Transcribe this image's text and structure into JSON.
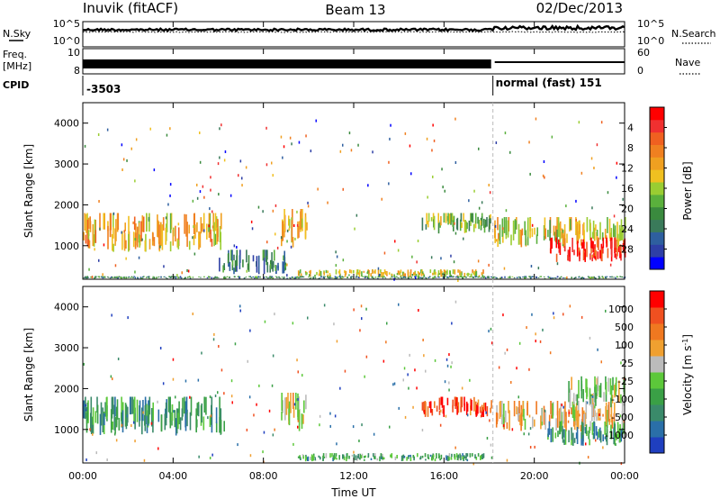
{
  "header": {
    "station": "Inuvik (fitACF)",
    "beam": "Beam 13",
    "date": "02/Dec/2013"
  },
  "noise_panel": {
    "left_label": "N.Sky",
    "left_ticks": [
      "10^5",
      "10^0"
    ],
    "right_ticks": [
      "10^5",
      "10^0"
    ],
    "right_label": "N.Search",
    "right_legend_style": "dotted"
  },
  "freq_panel": {
    "left_label_line1": "Freq.",
    "left_label_line2": "[MHz]",
    "left_ticks": [
      "10",
      "8"
    ],
    "right_ticks": [
      "60",
      "0"
    ],
    "right_label": "Nave",
    "right_legend_style": "dotted"
  },
  "cpid_panel": {
    "label": "CPID",
    "segments": [
      {
        "start_time": "00:00",
        "text": "-3503"
      },
      {
        "start_time": "18:10",
        "text": "normal (fast) 151"
      }
    ]
  },
  "time_axis": {
    "label": "Time UT",
    "ticks": [
      "00:00",
      "04:00",
      "08:00",
      "12:00",
      "16:00",
      "20:00",
      "00:00"
    ],
    "range_hours": [
      0,
      24
    ]
  },
  "mode_change_time": "18:10",
  "colors": {
    "background": "#ffffff",
    "axis": "#000000",
    "trace": "#000000",
    "mode_change_line": "#bbbbbb"
  },
  "chart_data": [
    {
      "type": "heatmap",
      "name": "power",
      "ylabel": "Slant Range [km]",
      "ylim": [
        180,
        4500
      ],
      "yticks": [
        "1000",
        "2000",
        "3000",
        "4000"
      ],
      "colorbar": {
        "label": "Power [dB]",
        "range": [
          0,
          32
        ],
        "ticks": [
          "4",
          "8",
          "12",
          "16",
          "20",
          "24",
          "28"
        ],
        "colors": [
          "#0000ff",
          "#2e3fa6",
          "#2e5f9f",
          "#3a7a5a",
          "#3a8a3e",
          "#5ab03c",
          "#9acd32",
          "#f0c020",
          "#f0a020",
          "#f08020",
          "#f06020",
          "#f03030",
          "#ff0000"
        ]
      },
      "echo_bands": [
        {
          "t0": 0.0,
          "t1": 6.3,
          "r0": 850,
          "r1": 1800,
          "level": 0.62
        },
        {
          "t0": 8.7,
          "t1": 9.9,
          "r0": 950,
          "r1": 1900,
          "level": 0.6
        },
        {
          "t0": 9.5,
          "t1": 17.8,
          "r0": 220,
          "r1": 420,
          "level": 0.55
        },
        {
          "t0": 15.0,
          "t1": 18.1,
          "r0": 1300,
          "r1": 1800,
          "level": 0.45
        },
        {
          "t0": 18.2,
          "t1": 24.0,
          "r0": 950,
          "r1": 1700,
          "level": 0.55
        },
        {
          "t0": 20.5,
          "t1": 24.0,
          "r0": 600,
          "r1": 1200,
          "level": 0.92
        },
        {
          "t0": 0.0,
          "t1": 24.0,
          "r0": 190,
          "r1": 260,
          "level": 0.3
        },
        {
          "t0": 6.0,
          "t1": 9.0,
          "r0": 300,
          "r1": 900,
          "level": 0.25
        }
      ]
    },
    {
      "type": "heatmap",
      "name": "velocity",
      "ylabel": "Slant Range [km]",
      "ylim": [
        180,
        4500
      ],
      "yticks": [
        "1000",
        "2000",
        "3000",
        "4000"
      ],
      "colorbar": {
        "label": "Velocity [m s^-1]",
        "ticks": [
          "1000",
          "500",
          "100",
          "25",
          "-25",
          "-100",
          "-500",
          "-1000"
        ],
        "colors": [
          "#1f3fbf",
          "#2a6fa8",
          "#3a8a6a",
          "#3aa046",
          "#5cc83a",
          "#bbbbbb",
          "#f0a030",
          "#f07820",
          "#f05020",
          "#ff0000"
        ]
      },
      "echo_bands": [
        {
          "t0": 0.0,
          "t1": 6.3,
          "r0": 850,
          "r1": 1800,
          "level": 0.3
        },
        {
          "t0": 8.7,
          "t1": 9.9,
          "r0": 950,
          "r1": 1900,
          "level": 0.55
        },
        {
          "t0": 9.5,
          "t1": 17.8,
          "r0": 220,
          "r1": 420,
          "level": 0.35
        },
        {
          "t0": 15.0,
          "t1": 18.1,
          "r0": 1300,
          "r1": 1800,
          "level": 0.85
        },
        {
          "t0": 18.2,
          "t1": 24.0,
          "r0": 950,
          "r1": 1700,
          "level": 0.62
        },
        {
          "t0": 20.5,
          "t1": 24.0,
          "r0": 600,
          "r1": 1200,
          "level": 0.3
        },
        {
          "t0": 21.5,
          "t1": 24.0,
          "r0": 1500,
          "r1": 2300,
          "level": 0.48
        }
      ]
    }
  ]
}
